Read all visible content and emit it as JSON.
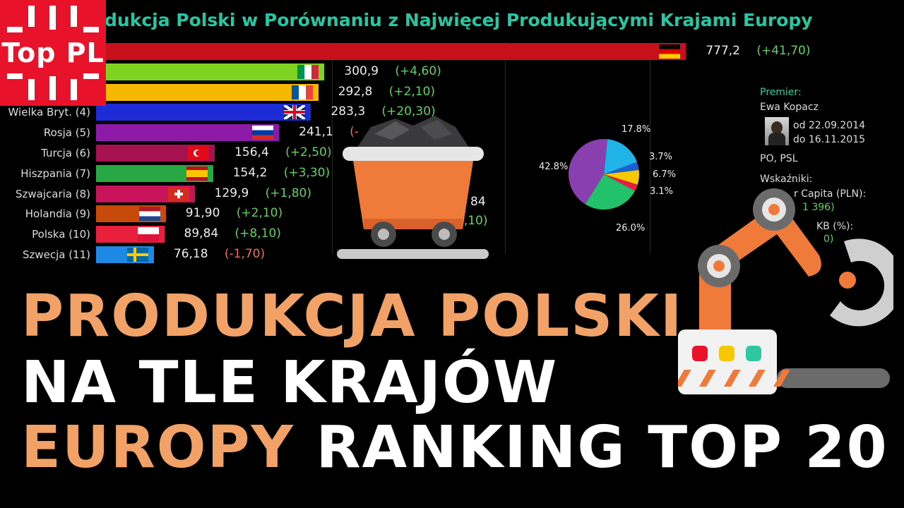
{
  "logo": {
    "text": "Top PL"
  },
  "chart_data": {
    "type": "bar",
    "title": "dukcja Polski w Porównaniu z Najwięcej Produkującymi Krajami Europy",
    "categories": [
      "",
      "",
      "",
      "Wielka Bryt. (4)",
      "Rosja (5)",
      "Turcja (6)",
      "Hiszpania (7)",
      "Szwajcaria (8)",
      "Holandia (9)",
      "Polska (10)",
      "Szwecja (11)"
    ],
    "values": [
      777.2,
      300.9,
      292.8,
      283.3,
      241.1,
      156.4,
      154.2,
      129.9,
      91.9,
      89.84,
      76.18
    ],
    "value_labels": [
      "777,2",
      "300,9",
      "292,8",
      "283,3",
      "241,1",
      "156,4",
      "154,2",
      "129,9",
      "91,90",
      "89,84",
      "76,18"
    ],
    "change_labels": [
      "(+41,70)",
      "(+4,60)",
      "(+2,10)",
      "(+20,30)",
      "(-",
      "(+2,50)",
      "(+3,30)",
      "(+1,80)",
      "(+2,10)",
      "(+8,10)",
      "(-1,70)"
    ],
    "colors": [
      "#c8101a",
      "#7ed321",
      "#f5b800",
      "#1c2bd6",
      "#8e1aa8",
      "#a5124f",
      "#27a844",
      "#c8125a",
      "#c84a0a",
      "#e8203e",
      "#1e88e5"
    ],
    "flags": [
      "germany",
      "italy",
      "france",
      "uk",
      "russia",
      "turkey",
      "spain",
      "switzerland",
      "netherlands",
      "poland",
      "sweden"
    ]
  },
  "pie": {
    "type": "pie",
    "values": [
      17.8,
      3.7,
      6.7,
      3.1,
      26.0,
      42.8
    ],
    "labels": [
      "17.8%",
      "3.7%",
      "6.7%",
      "3.1%",
      "26.0%",
      "42.8%"
    ],
    "colors": [
      "#1fb3e8",
      "#1a5fd6",
      "#f5c800",
      "#e61e46",
      "#22c26b",
      "#8a3fb0"
    ]
  },
  "partial_values": {
    "a": "84",
    "b": "8,10)"
  },
  "info": {
    "premier_label": "Premier:",
    "premier_name": "Ewa Kopacz",
    "from": "od 22.09.2014",
    "to": "do 16.11.2015",
    "parties": "PO, PSL",
    "indicators": "Wskaźniki:",
    "gdp_pc": "r Capita (PLN):",
    "gdp_pc_val": "1 396)",
    "kb": "KB (%):",
    "kb_val": "0)"
  },
  "headline": {
    "line1": "PRODUKCJA POLSKI",
    "line2": "NA TLE KRAJÓW",
    "line3a": "EUROPY",
    "line3b": "RANKING TOP 20"
  }
}
